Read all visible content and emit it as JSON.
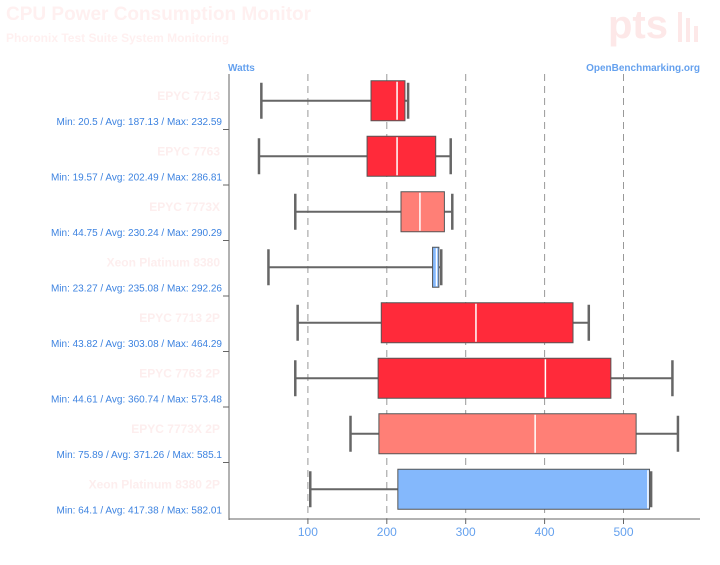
{
  "header": {
    "title": "CPU Power Consumption Monitor",
    "subtitle": "Phoronix Test Suite System Monitoring",
    "logo_text": "pts"
  },
  "chart_data": {
    "type": "box",
    "orientation": "horizontal",
    "ylabel": "Watts",
    "source": "OpenBenchmarking.org",
    "xlim": [
      0,
      600
    ],
    "ticks": [
      100,
      200,
      300,
      400,
      500
    ],
    "grid": "vertical-dashed",
    "categories": [
      {
        "label": "EPYC 7713",
        "stats": "Min: 20.5 / Avg: 187.13 / Max: 232.59",
        "min": 41,
        "q1": 180,
        "median": 213,
        "q3": 223,
        "max": 227,
        "color": "#ff2a3a"
      },
      {
        "label": "EPYC 7763",
        "stats": "Min: 19.57 / Avg: 202.49 / Max: 286.81",
        "min": 38,
        "q1": 175,
        "median": 213,
        "q3": 262,
        "max": 281,
        "color": "#ff2a3a"
      },
      {
        "label": "EPYC 7773X",
        "stats": "Min: 44.75 / Avg: 230.24 / Max: 290.29",
        "min": 84,
        "q1": 218,
        "median": 242,
        "q3": 273,
        "max": 283,
        "color": "#ff7f76"
      },
      {
        "label": "Xeon Platinum 8380",
        "stats": "Min: 23.27 / Avg: 235.08 / Max: 292.26",
        "min": 50,
        "q1": 258,
        "median": 263,
        "q3": 266,
        "max": 269,
        "color": "#84b8fc"
      },
      {
        "label": "EPYC 7713 2P",
        "stats": "Min: 43.82 / Avg: 303.08 / Max: 464.29",
        "min": 87,
        "q1": 193,
        "median": 313,
        "q3": 436,
        "max": 456,
        "color": "#ff2a3a"
      },
      {
        "label": "EPYC 7763 2P",
        "stats": "Min: 44.61 / Avg: 360.74 / Max: 573.48",
        "min": 84,
        "q1": 189,
        "median": 401,
        "q3": 484,
        "max": 562,
        "color": "#ff2a3a"
      },
      {
        "label": "EPYC 7773X 2P",
        "stats": "Min: 75.89 / Avg: 371.26 / Max: 585.1",
        "min": 154,
        "q1": 190,
        "median": 388,
        "q3": 516,
        "max": 569,
        "color": "#ff7f76"
      },
      {
        "label": "Xeon Platinum 8380 2P",
        "stats": "Min: 64.1 / Avg: 417.38 / Max: 582.01",
        "min": 103,
        "q1": 214,
        "median": 531,
        "q3": 533,
        "max": 535,
        "color": "#84b8fc"
      }
    ]
  }
}
